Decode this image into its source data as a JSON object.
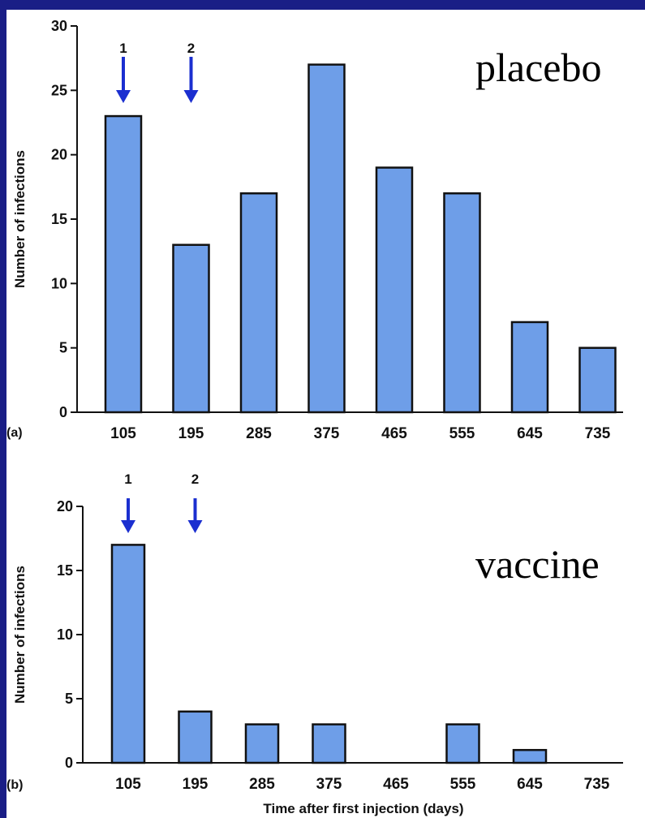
{
  "chart_data": [
    {
      "type": "bar",
      "panel_label": "(a)",
      "title": "placebo",
      "ylabel": "Number of infections",
      "xlabel": "",
      "categories": [
        "105",
        "195",
        "285",
        "375",
        "465",
        "555",
        "645",
        "735"
      ],
      "values": [
        23,
        13,
        17,
        27,
        19,
        17,
        7,
        5
      ],
      "ylim": [
        0,
        30
      ],
      "yticks": [
        0,
        5,
        10,
        15,
        20,
        25,
        30
      ],
      "annotations": [
        {
          "label": "1",
          "category": "105"
        },
        {
          "label": "2",
          "category": "195"
        }
      ],
      "bar_color": "#6e9ee8",
      "grid": false
    },
    {
      "type": "bar",
      "panel_label": "(b)",
      "title": "vaccine",
      "ylabel": "Number of infections",
      "xlabel": "Time after first injection (days)",
      "categories": [
        "105",
        "195",
        "285",
        "375",
        "465",
        "555",
        "645",
        "735"
      ],
      "values": [
        17,
        4,
        3,
        3,
        0,
        3,
        1,
        0
      ],
      "ylim": [
        0,
        20
      ],
      "yticks": [
        0,
        5,
        10,
        15,
        20
      ],
      "annotations": [
        {
          "label": "1",
          "category": "105"
        },
        {
          "label": "2",
          "category": "195"
        }
      ],
      "bar_color": "#6e9ee8",
      "grid": false
    }
  ],
  "colors": {
    "background": "#1a1e86",
    "bar": "#6e9ee8",
    "arrow": "#1b2fd0"
  }
}
